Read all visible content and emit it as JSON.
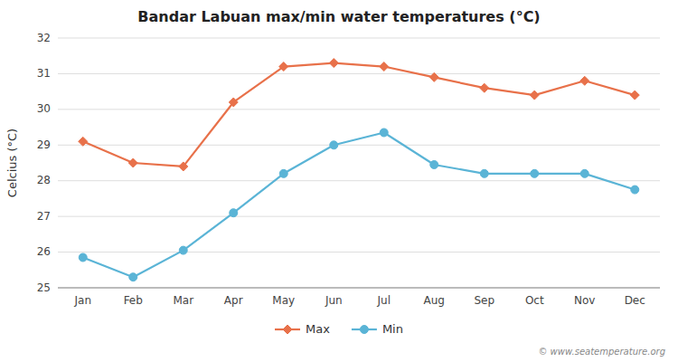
{
  "chart_data": {
    "type": "line",
    "title": "Bandar Labuan max/min water temperatures (°C)",
    "ylabel": "Celcius (°C)",
    "categories": [
      "Jan",
      "Feb",
      "Mar",
      "Apr",
      "May",
      "Jun",
      "Jul",
      "Aug",
      "Sep",
      "Oct",
      "Nov",
      "Dec"
    ],
    "series": [
      {
        "name": "Max",
        "color": "#e8714a",
        "marker": "diamond",
        "values": [
          29.1,
          28.5,
          28.4,
          30.2,
          31.2,
          31.3,
          31.2,
          30.9,
          30.6,
          30.4,
          30.8,
          30.4
        ]
      },
      {
        "name": "Min",
        "color": "#5ab4d6",
        "marker": "circle",
        "values": [
          25.85,
          25.3,
          26.05,
          27.1,
          28.2,
          29.0,
          29.35,
          28.45,
          28.2,
          28.2,
          28.2,
          27.75
        ]
      }
    ],
    "ylim": [
      25,
      32
    ],
    "yticks": [
      25,
      26,
      27,
      28,
      29,
      30,
      31,
      32
    ],
    "grid": true,
    "legend": "bottom",
    "annotations": [
      "© www.seatemperature.org"
    ]
  }
}
